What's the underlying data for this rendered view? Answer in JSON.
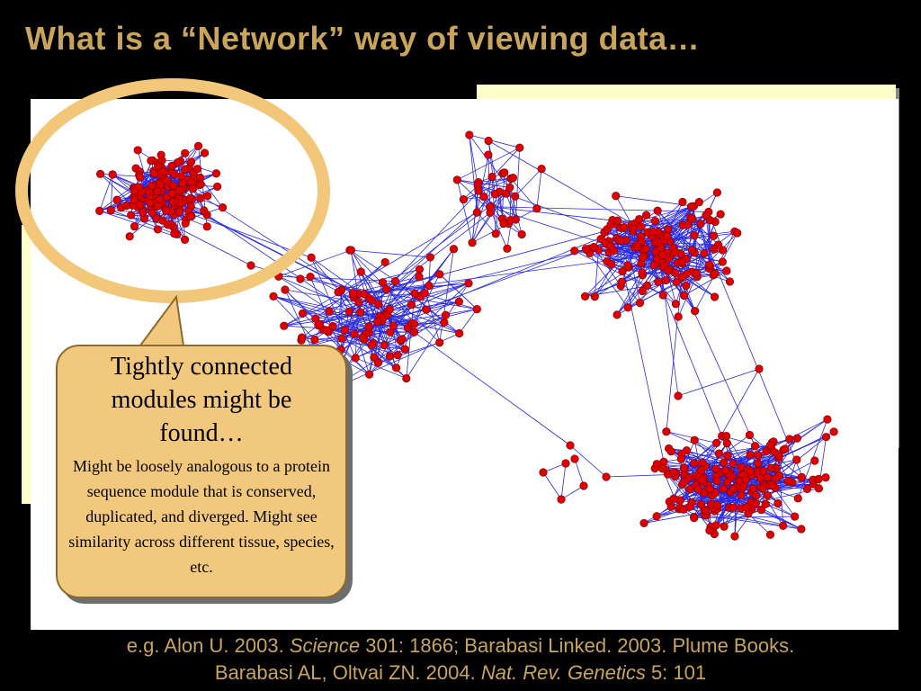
{
  "slide": {
    "title": "What is a “Network” way of viewing data…",
    "colors": {
      "background": "#000000",
      "title": "#c9a45b",
      "node": "#dd0000",
      "edge": "#2a2ae0",
      "highlight_ring": "#f3c77a",
      "callout_fill": "#f2c87e",
      "text_box": "#ffffcc"
    }
  },
  "callout": {
    "heading": "Tightly connected modules might be found…",
    "body": "Might be loosely analogous to a protein sequence module that is conserved, duplicated, and diverged.  Might see similarity across  different tissue, species, etc."
  },
  "citations": {
    "line1": {
      "prefix": "e.g. Alon U. 2003. ",
      "journal": "Science",
      "suffix": " 301: 1866;  Barabasi  Linked. 2003. Plume Books."
    },
    "line2": {
      "prefix": "Barabasi AL, Oltvai ZN. 2004. ",
      "journal": "Nat. Rev. Genetics",
      "suffix": " 5: 101"
    }
  }
}
